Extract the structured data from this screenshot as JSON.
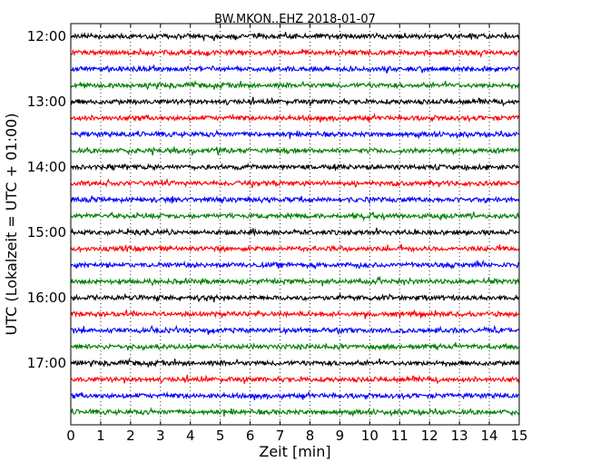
{
  "chart_data": {
    "type": "line",
    "title": "BW.MKON..EHZ 2018-01-07",
    "xlabel": "Zeit  [min]",
    "ylabel": "UTC (Lokalzeit = UTC + 01:00)",
    "xlim": [
      0,
      15
    ],
    "xticks": [
      "0",
      "1",
      "2",
      "3",
      "4",
      "5",
      "6",
      "7",
      "8",
      "9",
      "10",
      "11",
      "12",
      "13",
      "14",
      "15"
    ],
    "yticks": [
      "12:00",
      "13:00",
      "14:00",
      "15:00",
      "16:00",
      "17:00"
    ],
    "grid": "vertical dotted",
    "series_colors": [
      "#000000",
      "#ff0000",
      "#0000ff",
      "#007f00"
    ],
    "series": [
      {
        "start": "12:00",
        "color": "#000000"
      },
      {
        "start": "12:15",
        "color": "#ff0000"
      },
      {
        "start": "12:30",
        "color": "#0000ff"
      },
      {
        "start": "12:45",
        "color": "#007f00"
      },
      {
        "start": "13:00",
        "color": "#000000"
      },
      {
        "start": "13:15",
        "color": "#ff0000"
      },
      {
        "start": "13:30",
        "color": "#0000ff"
      },
      {
        "start": "13:45",
        "color": "#007f00"
      },
      {
        "start": "14:00",
        "color": "#000000"
      },
      {
        "start": "14:15",
        "color": "#ff0000"
      },
      {
        "start": "14:30",
        "color": "#0000ff"
      },
      {
        "start": "14:45",
        "color": "#007f00"
      },
      {
        "start": "15:00",
        "color": "#000000"
      },
      {
        "start": "15:15",
        "color": "#ff0000"
      },
      {
        "start": "15:30",
        "color": "#0000ff"
      },
      {
        "start": "15:45",
        "color": "#007f00"
      },
      {
        "start": "16:00",
        "color": "#000000"
      },
      {
        "start": "16:15",
        "color": "#ff0000"
      },
      {
        "start": "16:30",
        "color": "#0000ff"
      },
      {
        "start": "16:45",
        "color": "#007f00"
      },
      {
        "start": "17:00",
        "color": "#000000"
      },
      {
        "start": "17:15",
        "color": "#ff0000"
      },
      {
        "start": "17:30",
        "color": "#0000ff"
      },
      {
        "start": "17:45",
        "color": "#007f00"
      }
    ]
  }
}
